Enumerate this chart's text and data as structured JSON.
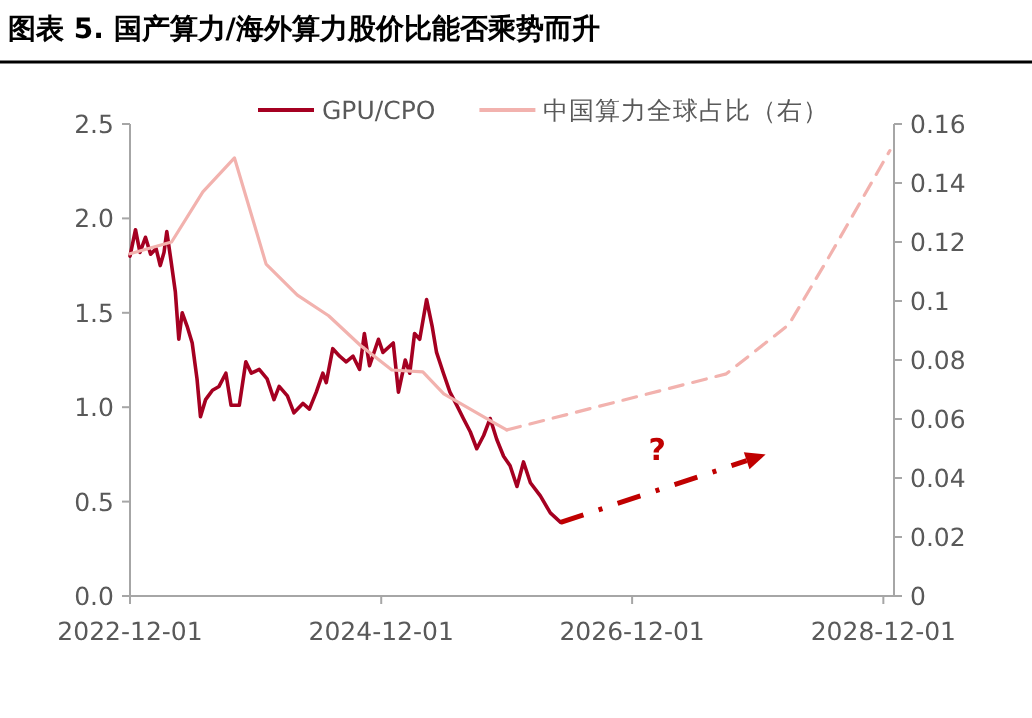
{
  "chart_data": {
    "type": "line",
    "title": "图表 5. 国产算力/海外算力股价比能否乘势而升",
    "xlim": [
      "2022-12-01",
      "2029-01-01"
    ],
    "xticks": [
      {
        "value": "2022-12-01",
        "label": "2022-12-01"
      },
      {
        "value": "2024-12-01",
        "label": "2024-12-01"
      },
      {
        "value": "2026-12-01",
        "label": "2026-12-01"
      },
      {
        "value": "2028-12-01",
        "label": "2028-12-01"
      }
    ],
    "ylim": [
      0,
      2.5
    ],
    "yticks": [
      {
        "value": 0,
        "label": "0.0"
      },
      {
        "value": 0.5,
        "label": "0.5"
      },
      {
        "value": 1,
        "label": "1.0"
      },
      {
        "value": 1.5,
        "label": "1.5"
      },
      {
        "value": 2,
        "label": "2.0"
      },
      {
        "value": 2.5,
        "label": "2.5"
      }
    ],
    "y2lim": [
      0,
      0.16
    ],
    "y2ticks": [
      0,
      0.02,
      0.04,
      0.06,
      0.08,
      0.1,
      0.12,
      0.14,
      0.16
    ],
    "legend": "top",
    "series": [
      {
        "name": "GPU/CPO",
        "color": "#a50021",
        "axis": "y",
        "line_style": "solid",
        "x": [
          "2022-12-01",
          "2022-12-17",
          "2022-12-30",
          "2023-01-15",
          "2023-01-30",
          "2023-02-15",
          "2023-02-27",
          "2023-03-10",
          "2023-03-18",
          "2023-03-30",
          "2023-04-12",
          "2023-04-22",
          "2023-05-02",
          "2023-05-16",
          "2023-05-31",
          "2023-06-14",
          "2023-06-24",
          "2023-07-09",
          "2023-07-29",
          "2023-08-17",
          "2023-09-06",
          "2023-09-21",
          "2023-10-15",
          "2023-11-03",
          "2023-11-19",
          "2023-12-12",
          "2024-01-04",
          "2024-01-24",
          "2024-02-08",
          "2024-03-03",
          "2024-03-22",
          "2024-04-17",
          "2024-05-06",
          "2024-05-26",
          "2024-06-14",
          "2024-06-24",
          "2024-07-13",
          "2024-08-02",
          "2024-08-21",
          "2024-09-10",
          "2024-09-29",
          "2024-10-13",
          "2024-10-28",
          "2024-11-23",
          "2024-12-06",
          "2025-01-05",
          "2025-01-20",
          "2025-02-09",
          "2025-02-22",
          "2025-03-08",
          "2025-03-23",
          "2025-04-12",
          "2025-04-28",
          "2025-05-11",
          "2025-05-31",
          "2025-06-19",
          "2025-07-09",
          "2025-07-28",
          "2025-08-17",
          "2025-09-05",
          "2025-09-25",
          "2025-10-14",
          "2025-11-02",
          "2025-11-22",
          "2025-12-11",
          "2025-12-31",
          "2026-01-19",
          "2026-02-08",
          "2026-03-09",
          "2026-04-07",
          "2026-05-07"
        ],
        "values": [
          1.8,
          1.94,
          1.82,
          1.9,
          1.81,
          1.84,
          1.75,
          1.82,
          1.93,
          1.78,
          1.61,
          1.36,
          1.5,
          1.43,
          1.34,
          1.15,
          0.95,
          1.04,
          1.09,
          1.11,
          1.18,
          1.01,
          1.01,
          1.24,
          1.18,
          1.2,
          1.15,
          1.04,
          1.11,
          1.06,
          0.97,
          1.02,
          0.99,
          1.08,
          1.18,
          1.13,
          1.31,
          1.27,
          1.24,
          1.27,
          1.2,
          1.39,
          1.22,
          1.36,
          1.29,
          1.34,
          1.08,
          1.25,
          1.18,
          1.39,
          1.36,
          1.57,
          1.43,
          1.29,
          1.18,
          1.08,
          1.01,
          0.94,
          0.87,
          0.78,
          0.85,
          0.94,
          0.83,
          0.74,
          0.69,
          0.58,
          0.71,
          0.6,
          0.53,
          0.44,
          0.39
        ]
      },
      {
        "name": "中国算力全球占比（右）",
        "color": "#f2b2ae",
        "axis": "y2",
        "line_style": "solid",
        "x": [
          "2022-12-01",
          "2023-04-01",
          "2023-07-01",
          "2023-10-01",
          "2024-01-01",
          "2024-04-01",
          "2024-07-01",
          "2024-10-01",
          "2025-01-01",
          "2025-04-01",
          "2025-06-01",
          "2025-11-01",
          "2025-12-01"
        ],
        "values": [
          0.116,
          0.12,
          0.137,
          0.1485,
          0.1125,
          0.102,
          0.095,
          0.085,
          0.0766,
          0.076,
          0.0685,
          0.0583,
          0.0563
        ]
      },
      {
        "color": "#f2b2ae",
        "axis": "y2",
        "line_style": "dashed",
        "x": [
          "2025-12-01",
          "2027-09-01",
          "2028-03-01",
          "2028-07-01",
          "2028-12-20"
        ],
        "values": [
          0.0563,
          0.0753,
          0.092,
          0.116,
          0.151
        ]
      }
    ],
    "annotations": [
      "?"
    ]
  }
}
